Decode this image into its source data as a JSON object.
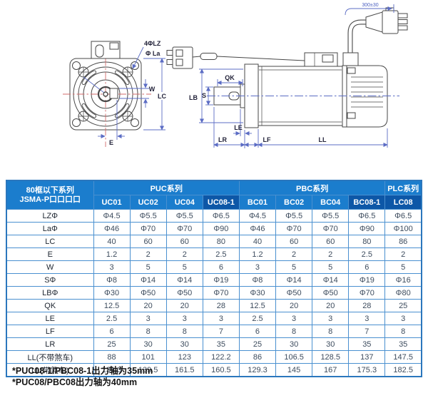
{
  "drawing": {
    "labels": {
      "mounting_holes": "4ΦLZ",
      "bolt_circle": "Φ La",
      "key_width": "W",
      "frame_size": "LC",
      "key_offset": "E",
      "key_length": "QK",
      "pilot_diameter": "LB",
      "shaft_diameter": "S",
      "pilot_depth": "LE",
      "shaft_length": "LR",
      "flange_thickness": "LF",
      "body_length": "LL",
      "cable_length": "300±30"
    },
    "colors": {
      "outline": "#474747",
      "dimension": "#5b6cc4",
      "centerline_red": "#d06a6a"
    }
  },
  "table": {
    "corner_header": {
      "line1": "80框以下系列",
      "line2": "JSMA-P口口口口"
    },
    "groups": [
      {
        "label": "PUC系列",
        "span": 4
      },
      {
        "label": "PBC系列",
        "span": 4
      },
      {
        "label": "PLC系列",
        "span": 1
      }
    ],
    "columns": [
      "UC01",
      "UC02",
      "UC04",
      "UC08-1",
      "BC01",
      "BC02",
      "BC04",
      "BC08-1",
      "LC08"
    ],
    "highlighted_columns": [
      "UC08-1",
      "BC08-1",
      "LC08"
    ],
    "rows": [
      {
        "label": "LZΦ",
        "values": [
          "Φ4.5",
          "Φ5.5",
          "Φ5.5",
          "Φ6.5",
          "Φ4.5",
          "Φ5.5",
          "Φ5.5",
          "Φ6.5",
          "Φ6.5"
        ]
      },
      {
        "label": "LaΦ",
        "values": [
          "Φ46",
          "Φ70",
          "Φ70",
          "Φ90",
          "Φ46",
          "Φ70",
          "Φ70",
          "Φ90",
          "Φ100"
        ]
      },
      {
        "label": "LC",
        "values": [
          "40",
          "60",
          "60",
          "80",
          "40",
          "60",
          "60",
          "80",
          "86"
        ]
      },
      {
        "label": "E",
        "values": [
          "1.2",
          "2",
          "2",
          "2.5",
          "1.2",
          "2",
          "2",
          "2.5",
          "2"
        ]
      },
      {
        "label": "W",
        "values": [
          "3",
          "5",
          "5",
          "6",
          "3",
          "5",
          "5",
          "6",
          "5"
        ]
      },
      {
        "label": "SΦ",
        "values": [
          "Φ8",
          "Φ14",
          "Φ14",
          "Φ19",
          "Φ8",
          "Φ14",
          "Φ14",
          "Φ19",
          "Φ16"
        ]
      },
      {
        "label": "LBΦ",
        "values": [
          "Φ30",
          "Φ50",
          "Φ50",
          "Φ70",
          "Φ30",
          "Φ50",
          "Φ50",
          "Φ70",
          "Φ80"
        ]
      },
      {
        "label": "QK",
        "values": [
          "12.5",
          "20",
          "20",
          "28",
          "12.5",
          "20",
          "20",
          "28",
          "25"
        ]
      },
      {
        "label": "LE",
        "values": [
          "2.5",
          "3",
          "3",
          "3",
          "2.5",
          "3",
          "3",
          "3",
          "3"
        ]
      },
      {
        "label": "LF",
        "values": [
          "6",
          "8",
          "8",
          "7",
          "6",
          "8",
          "8",
          "7",
          "8"
        ]
      },
      {
        "label": "LR",
        "values": [
          "25",
          "30",
          "30",
          "35",
          "25",
          "30",
          "30",
          "35",
          "35"
        ]
      },
      {
        "label": "LL(不带煞车)",
        "values": [
          "88",
          "101",
          "123",
          "122.2",
          "86",
          "106.5",
          "128.5",
          "137",
          "147.5"
        ]
      },
      {
        "label": "LL(带煞车)",
        "values": [
          "131.3",
          "139.5",
          "161.5",
          "160.5",
          "129.3",
          "145",
          "167",
          "175.3",
          "182.5"
        ]
      }
    ],
    "colors": {
      "header_bg": "#1b7dcd",
      "header_highlight_bg": "#0d57a7",
      "border": "#4a90d0",
      "header_text": "#ffffff",
      "body_text": "#3d4c5e"
    }
  },
  "footnotes": [
    "*PUC08-1/PBC08-1出力轴为35mm",
    "*PUC08/PBC08出力轴为40mm"
  ]
}
